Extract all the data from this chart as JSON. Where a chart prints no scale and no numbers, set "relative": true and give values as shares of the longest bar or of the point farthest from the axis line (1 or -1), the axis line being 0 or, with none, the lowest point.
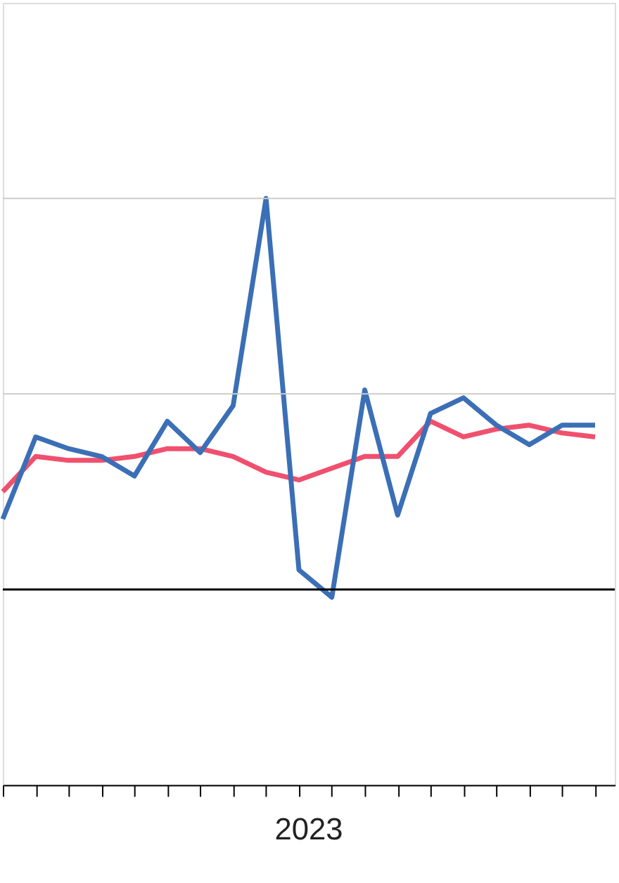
{
  "chart_data": {
    "type": "line",
    "relative": true,
    "legend": false,
    "ref_lines": [
      {
        "axis": "y",
        "value": 0.5,
        "color": "#cccccc"
      },
      {
        "axis": "y",
        "value": 1.0,
        "color": "#cccccc"
      }
    ],
    "marker": "none",
    "line_style": "solid",
    "categories": [
      null,
      null,
      null,
      null,
      null,
      null,
      null,
      null,
      null,
      null,
      null,
      null,
      null,
      null,
      null,
      null,
      null,
      null,
      null
    ],
    "annotations": [
      "2023"
    ],
    "series": [
      {
        "color": "#f0506e",
        "values": [
          0.25,
          0.34,
          0.33,
          0.33,
          0.34,
          0.36,
          0.36,
          0.34,
          0.3,
          0.28,
          0.31,
          0.34,
          0.34,
          0.43,
          0.39,
          0.41,
          0.42,
          0.4,
          0.39
        ]
      },
      {
        "color": "#3b6fb6",
        "values": [
          0.18,
          0.39,
          0.36,
          0.34,
          0.29,
          0.43,
          0.35,
          0.47,
          1.0,
          0.05,
          -0.02,
          0.51,
          0.19,
          0.45,
          0.49,
          0.42,
          0.37,
          0.42,
          0.42
        ]
      }
    ]
  }
}
